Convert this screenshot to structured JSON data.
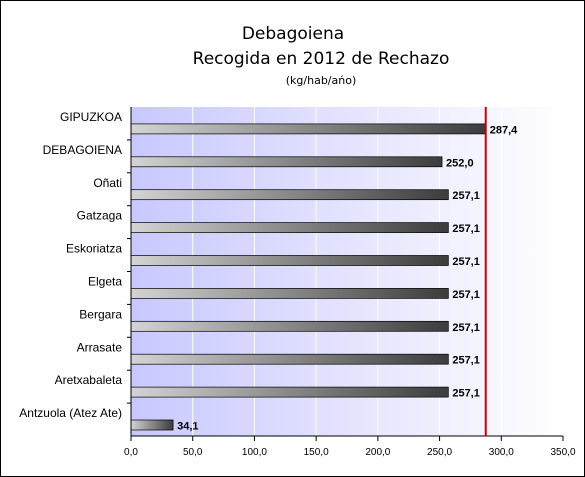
{
  "chart_data": {
    "type": "bar",
    "orientation": "horizontal",
    "title": "Debagoiena",
    "subtitle_line": "Recogida en 2012 de Rechazo",
    "units": "(kg/hab/ańo)",
    "categories": [
      "GIPUZKOA",
      "DEBAGOIENA",
      "Oñati",
      "Gatzaga",
      "Eskoriatza",
      "Elgeta",
      "Bergara",
      "Arrasate",
      "Aretxabaleta",
      "Antzuola (Atez Ate)"
    ],
    "values": [
      287.4,
      252.0,
      257.1,
      257.1,
      257.1,
      257.1,
      257.1,
      257.1,
      257.1,
      34.1
    ],
    "value_labels": [
      "287,4",
      "252,0",
      "257,1",
      "257,1",
      "257,1",
      "257,1",
      "257,1",
      "257,1",
      "257,1",
      "34,1"
    ],
    "xlim": [
      0,
      350
    ],
    "x_ticks": [
      0,
      50,
      100,
      150,
      200,
      250,
      300,
      350
    ],
    "x_tick_labels": [
      "0,0",
      "50,0",
      "100,0",
      "150,0",
      "200,0",
      "250,0",
      "300,0",
      "350,0"
    ],
    "reference_line": {
      "value": 287.4,
      "color": "#cc0000"
    },
    "grid": true,
    "legend": "none",
    "colors": {
      "plot_gradient_start": "#c8c8ff",
      "plot_gradient_end": "#ffffff",
      "bar_gradient_start": "#d4d4d4",
      "bar_gradient_end": "#3c3c3c",
      "grid": "#ffffff"
    }
  }
}
